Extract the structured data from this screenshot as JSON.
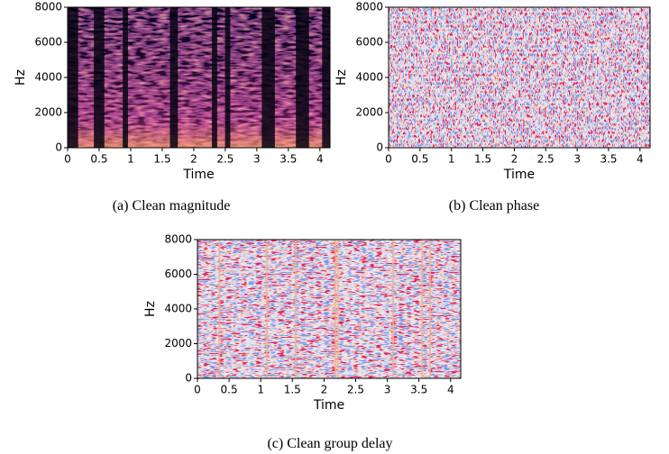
{
  "chart_data": [
    {
      "type": "spectrogram",
      "colormap": "magma",
      "xlabel": "Time",
      "ylabel": "Hz",
      "caption": "(a) Clean magnitude",
      "xlim": [
        0,
        4.16
      ],
      "ylim": [
        0,
        8000
      ],
      "xticks": [
        0,
        0.5,
        1,
        1.5,
        2,
        2.5,
        3,
        3.5,
        4
      ],
      "yticks": [
        0,
        2000,
        4000,
        6000,
        8000
      ]
    },
    {
      "type": "spectrogram",
      "colormap": "coolwarm",
      "xlabel": "Time",
      "ylabel": "Hz",
      "caption": "(b) Clean phase",
      "xlim": [
        0,
        4.16
      ],
      "ylim": [
        0,
        8000
      ],
      "xticks": [
        0,
        0.5,
        1,
        1.5,
        2,
        2.5,
        3,
        3.5,
        4
      ],
      "yticks": [
        0,
        2000,
        4000,
        6000,
        8000
      ]
    },
    {
      "type": "spectrogram",
      "colormap": "coolwarm",
      "xlabel": "Time",
      "ylabel": "Hz",
      "caption": "(c) Clean group delay",
      "xlim": [
        0,
        4.16
      ],
      "ylim": [
        0,
        8000
      ],
      "xticks": [
        0,
        0.5,
        1,
        1.5,
        2,
        2.5,
        3,
        3.5,
        4
      ],
      "yticks": [
        0,
        2000,
        4000,
        6000,
        8000
      ]
    }
  ]
}
